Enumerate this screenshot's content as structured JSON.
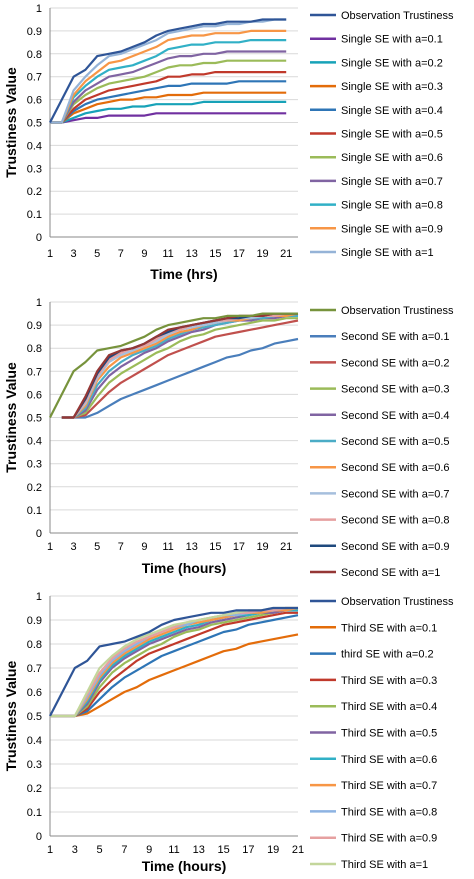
{
  "chart_data": [
    {
      "type": "line",
      "xlabel": "Time (hrs)",
      "ylabel": "Trustiness Value",
      "xlim": [
        1,
        22
      ],
      "ylim": [
        0,
        1
      ],
      "x_ticks": [
        1,
        3,
        5,
        7,
        9,
        11,
        13,
        15,
        17,
        19,
        21
      ],
      "y_ticks": [
        0,
        0.1,
        0.2,
        0.3,
        0.4,
        0.5,
        0.6,
        0.7,
        0.8,
        0.9,
        1
      ],
      "grid": "horizontal",
      "legend_position": "right",
      "x": [
        1,
        2,
        3,
        4,
        5,
        6,
        7,
        8,
        9,
        10,
        11,
        12,
        13,
        14,
        15,
        16,
        17,
        18,
        19,
        20,
        21
      ],
      "series": [
        {
          "name": "Observation Trustiness",
          "color": "#2f5597",
          "values": [
            0.5,
            0.6,
            0.7,
            0.73,
            0.79,
            0.8,
            0.81,
            0.83,
            0.85,
            0.88,
            0.9,
            0.91,
            0.92,
            0.93,
            0.93,
            0.94,
            0.94,
            0.94,
            0.95,
            0.95,
            0.95
          ]
        },
        {
          "name": "Single SE with a=0.1",
          "color": "#7030a0",
          "values": [
            0.5,
            0.5,
            0.51,
            0.52,
            0.52,
            0.53,
            0.53,
            0.53,
            0.53,
            0.54,
            0.54,
            0.54,
            0.54,
            0.54,
            0.54,
            0.54,
            0.54,
            0.54,
            0.54,
            0.54,
            0.54
          ]
        },
        {
          "name": "Single SE with a=0.2",
          "color": "#17a2b8",
          "values": [
            0.5,
            0.5,
            0.52,
            0.54,
            0.55,
            0.56,
            0.56,
            0.57,
            0.57,
            0.58,
            0.58,
            0.58,
            0.58,
            0.59,
            0.59,
            0.59,
            0.59,
            0.59,
            0.59,
            0.59,
            0.59
          ]
        },
        {
          "name": "Single SE with a=0.3",
          "color": "#e36c0a",
          "values": [
            0.5,
            0.5,
            0.54,
            0.56,
            0.58,
            0.59,
            0.6,
            0.6,
            0.61,
            0.61,
            0.62,
            0.62,
            0.62,
            0.63,
            0.63,
            0.63,
            0.63,
            0.63,
            0.63,
            0.63,
            0.63
          ]
        },
        {
          "name": "Single SE with a=0.4",
          "color": "#2e75b6",
          "values": [
            0.5,
            0.5,
            0.55,
            0.58,
            0.6,
            0.61,
            0.62,
            0.63,
            0.64,
            0.65,
            0.66,
            0.66,
            0.67,
            0.67,
            0.67,
            0.67,
            0.68,
            0.68,
            0.68,
            0.68,
            0.68
          ]
        },
        {
          "name": "Single SE with a=0.5",
          "color": "#c0392b",
          "values": [
            0.5,
            0.5,
            0.56,
            0.6,
            0.62,
            0.64,
            0.65,
            0.66,
            0.67,
            0.68,
            0.7,
            0.7,
            0.71,
            0.71,
            0.72,
            0.72,
            0.72,
            0.72,
            0.72,
            0.72,
            0.72
          ]
        },
        {
          "name": "Single SE with a=0.6",
          "color": "#9bbb59",
          "values": [
            0.5,
            0.5,
            0.58,
            0.62,
            0.65,
            0.67,
            0.68,
            0.69,
            0.7,
            0.72,
            0.74,
            0.75,
            0.75,
            0.76,
            0.76,
            0.77,
            0.77,
            0.77,
            0.77,
            0.77,
            0.77
          ]
        },
        {
          "name": "Single SE with a=0.7",
          "color": "#8064a2",
          "values": [
            0.5,
            0.5,
            0.59,
            0.64,
            0.67,
            0.7,
            0.71,
            0.72,
            0.74,
            0.76,
            0.78,
            0.79,
            0.79,
            0.8,
            0.8,
            0.81,
            0.81,
            0.81,
            0.81,
            0.81,
            0.81
          ]
        },
        {
          "name": "Single SE with a=0.8",
          "color": "#31b0c6",
          "values": [
            0.5,
            0.5,
            0.61,
            0.66,
            0.7,
            0.73,
            0.74,
            0.75,
            0.77,
            0.79,
            0.82,
            0.83,
            0.84,
            0.84,
            0.85,
            0.85,
            0.85,
            0.86,
            0.86,
            0.86,
            0.86
          ]
        },
        {
          "name": "Single SE with a=0.9",
          "color": "#f79646",
          "values": [
            0.5,
            0.5,
            0.62,
            0.68,
            0.72,
            0.76,
            0.77,
            0.79,
            0.81,
            0.83,
            0.86,
            0.87,
            0.88,
            0.88,
            0.89,
            0.89,
            0.89,
            0.9,
            0.9,
            0.9,
            0.9
          ]
        },
        {
          "name": "Single SE with a=1",
          "color": "#95b3d7",
          "values": [
            0.5,
            0.5,
            0.64,
            0.7,
            0.75,
            0.79,
            0.8,
            0.82,
            0.84,
            0.86,
            0.89,
            0.9,
            0.91,
            0.92,
            0.92,
            0.93,
            0.93,
            0.94,
            0.94,
            0.95,
            0.95
          ]
        }
      ]
    },
    {
      "type": "line",
      "xlabel": "Time (hours)",
      "ylabel": "Trustiness Value",
      "xlim": [
        1,
        22
      ],
      "ylim": [
        0,
        1
      ],
      "x_ticks": [
        1,
        3,
        5,
        7,
        9,
        11,
        13,
        15,
        17,
        19,
        21
      ],
      "y_ticks": [
        0,
        0.1,
        0.2,
        0.3,
        0.4,
        0.5,
        0.6,
        0.7,
        0.8,
        0.9,
        1
      ],
      "grid": "horizontal",
      "legend_position": "right",
      "x": [
        1,
        2,
        3,
        4,
        5,
        6,
        7,
        8,
        9,
        10,
        11,
        12,
        13,
        14,
        15,
        16,
        17,
        18,
        19,
        20,
        21,
        22
      ],
      "series": [
        {
          "name": "Observation Trustiness",
          "color": "#77933c",
          "values": [
            0.5,
            0.6,
            0.7,
            0.74,
            0.79,
            0.8,
            0.81,
            0.83,
            0.85,
            0.88,
            0.9,
            0.91,
            0.92,
            0.93,
            0.93,
            0.94,
            0.94,
            0.94,
            0.95,
            0.95,
            0.95,
            0.95
          ]
        },
        {
          "name": "Second SE with a=0.1",
          "color": "#4a7ebb",
          "values": [
            null,
            0.5,
            0.5,
            0.5,
            0.52,
            0.55,
            0.58,
            0.6,
            0.62,
            0.64,
            0.66,
            0.68,
            0.7,
            0.72,
            0.74,
            0.76,
            0.77,
            0.79,
            0.8,
            0.82,
            0.83,
            0.84
          ]
        },
        {
          "name": "Second SE with a=0.2",
          "color": "#c0504d",
          "values": [
            null,
            0.5,
            0.5,
            0.51,
            0.56,
            0.61,
            0.65,
            0.68,
            0.71,
            0.74,
            0.77,
            0.79,
            0.81,
            0.83,
            0.85,
            0.86,
            0.87,
            0.88,
            0.89,
            0.9,
            0.91,
            0.92
          ]
        },
        {
          "name": "Second SE with a=0.3",
          "color": "#9bbb59",
          "values": [
            null,
            0.5,
            0.5,
            0.52,
            0.59,
            0.65,
            0.69,
            0.72,
            0.75,
            0.78,
            0.8,
            0.83,
            0.85,
            0.86,
            0.88,
            0.89,
            0.9,
            0.91,
            0.92,
            0.92,
            0.93,
            0.93
          ]
        },
        {
          "name": "Second SE with a=0.4",
          "color": "#8064a2",
          "values": [
            null,
            0.5,
            0.5,
            0.53,
            0.62,
            0.68,
            0.72,
            0.75,
            0.78,
            0.8,
            0.83,
            0.85,
            0.87,
            0.88,
            0.9,
            0.91,
            0.92,
            0.92,
            0.93,
            0.93,
            0.94,
            0.94
          ]
        },
        {
          "name": "Second SE with a=0.5",
          "color": "#4bacc6",
          "values": [
            null,
            0.5,
            0.5,
            0.54,
            0.64,
            0.7,
            0.74,
            0.77,
            0.79,
            0.81,
            0.84,
            0.86,
            0.88,
            0.89,
            0.9,
            0.91,
            0.92,
            0.93,
            0.93,
            0.94,
            0.94,
            0.94
          ]
        },
        {
          "name": "Second SE with a=0.6",
          "color": "#f79646",
          "values": [
            null,
            0.5,
            0.5,
            0.55,
            0.66,
            0.72,
            0.76,
            0.78,
            0.8,
            0.82,
            0.85,
            0.87,
            0.88,
            0.9,
            0.91,
            0.92,
            0.92,
            0.93,
            0.94,
            0.94,
            0.94,
            0.95
          ]
        },
        {
          "name": "Second SE with a=0.7",
          "color": "#a6bfdd",
          "values": [
            null,
            0.5,
            0.5,
            0.56,
            0.67,
            0.74,
            0.77,
            0.79,
            0.81,
            0.83,
            0.86,
            0.88,
            0.89,
            0.9,
            0.91,
            0.92,
            0.93,
            0.93,
            0.94,
            0.94,
            0.95,
            0.95
          ]
        },
        {
          "name": "Second SE with a=0.8",
          "color": "#e6a0a0",
          "values": [
            null,
            0.5,
            0.5,
            0.57,
            0.68,
            0.75,
            0.78,
            0.8,
            0.81,
            0.84,
            0.87,
            0.88,
            0.9,
            0.91,
            0.92,
            0.92,
            0.93,
            0.94,
            0.94,
            0.94,
            0.95,
            0.95
          ]
        },
        {
          "name": "Second SE with a=0.9",
          "color": "#1f497d",
          "values": [
            null,
            0.5,
            0.5,
            0.58,
            0.69,
            0.76,
            0.79,
            0.8,
            0.82,
            0.85,
            0.87,
            0.89,
            0.9,
            0.91,
            0.92,
            0.93,
            0.93,
            0.94,
            0.94,
            0.95,
            0.95,
            0.95
          ]
        },
        {
          "name": "Second SE with a=1",
          "color": "#953735",
          "values": [
            null,
            0.5,
            0.5,
            0.59,
            0.7,
            0.77,
            0.79,
            0.8,
            0.82,
            0.85,
            0.88,
            0.89,
            0.9,
            0.91,
            0.92,
            0.93,
            0.94,
            0.94,
            0.94,
            0.95,
            0.95,
            0.95
          ]
        }
      ]
    },
    {
      "type": "line",
      "xlabel": "Time (hours)",
      "ylabel": "Trustiness Value",
      "xlim": [
        1,
        21
      ],
      "ylim": [
        0,
        1
      ],
      "x_ticks": [
        1,
        3,
        5,
        7,
        9,
        11,
        13,
        15,
        17,
        19,
        21
      ],
      "y_ticks": [
        0,
        0.1,
        0.2,
        0.3,
        0.4,
        0.5,
        0.6,
        0.7,
        0.8,
        0.9,
        1
      ],
      "grid": "horizontal",
      "legend_position": "right",
      "x": [
        1,
        2,
        3,
        4,
        5,
        6,
        7,
        8,
        9,
        10,
        11,
        12,
        13,
        14,
        15,
        16,
        17,
        18,
        19,
        20,
        21
      ],
      "series": [
        {
          "name": "Observation Trustiness",
          "color": "#2f5597",
          "values": [
            0.5,
            0.6,
            0.7,
            0.73,
            0.79,
            0.8,
            0.81,
            0.83,
            0.85,
            0.88,
            0.9,
            0.91,
            0.92,
            0.93,
            0.93,
            0.94,
            0.94,
            0.94,
            0.95,
            0.95,
            0.95
          ]
        },
        {
          "name": "Third SE with a=0.1",
          "color": "#e36c0a",
          "values": [
            0.5,
            0.5,
            0.5,
            0.51,
            0.54,
            0.57,
            0.6,
            0.62,
            0.65,
            0.67,
            0.69,
            0.71,
            0.73,
            0.75,
            0.77,
            0.78,
            0.8,
            0.81,
            0.82,
            0.83,
            0.84
          ]
        },
        {
          "name": "third SE with a=0.2",
          "color": "#2e75b6",
          "values": [
            0.5,
            0.5,
            0.5,
            0.52,
            0.57,
            0.62,
            0.66,
            0.69,
            0.72,
            0.75,
            0.77,
            0.79,
            0.81,
            0.83,
            0.85,
            0.86,
            0.88,
            0.89,
            0.9,
            0.91,
            0.92
          ]
        },
        {
          "name": "Third SE with a=0.3",
          "color": "#c0392b",
          "values": [
            0.5,
            0.5,
            0.5,
            0.53,
            0.6,
            0.65,
            0.69,
            0.73,
            0.76,
            0.78,
            0.8,
            0.82,
            0.84,
            0.86,
            0.88,
            0.89,
            0.9,
            0.91,
            0.92,
            0.93,
            0.93
          ]
        },
        {
          "name": "Third SE with a=0.4",
          "color": "#9bbb59",
          "values": [
            0.5,
            0.5,
            0.5,
            0.54,
            0.62,
            0.68,
            0.72,
            0.75,
            0.78,
            0.8,
            0.83,
            0.85,
            0.86,
            0.88,
            0.89,
            0.9,
            0.91,
            0.92,
            0.93,
            0.94,
            0.94
          ]
        },
        {
          "name": "Third SE with a=0.5",
          "color": "#8064a2",
          "values": [
            0.5,
            0.5,
            0.5,
            0.55,
            0.64,
            0.7,
            0.74,
            0.77,
            0.8,
            0.82,
            0.84,
            0.86,
            0.87,
            0.89,
            0.9,
            0.91,
            0.92,
            0.93,
            0.93,
            0.94,
            0.94
          ]
        },
        {
          "name": "Third SE with a=0.6",
          "color": "#31b0c6",
          "values": [
            0.5,
            0.5,
            0.5,
            0.56,
            0.65,
            0.71,
            0.75,
            0.78,
            0.81,
            0.83,
            0.85,
            0.87,
            0.88,
            0.9,
            0.91,
            0.92,
            0.92,
            0.93,
            0.94,
            0.94,
            0.94
          ]
        },
        {
          "name": "Third SE with a=0.7",
          "color": "#f79646",
          "values": [
            0.5,
            0.5,
            0.5,
            0.57,
            0.66,
            0.72,
            0.76,
            0.79,
            0.82,
            0.84,
            0.86,
            0.88,
            0.89,
            0.9,
            0.91,
            0.92,
            0.93,
            0.93,
            0.94,
            0.94,
            0.95
          ]
        },
        {
          "name": "Third SE with a=0.8",
          "color": "#8db3e2",
          "values": [
            0.5,
            0.5,
            0.5,
            0.58,
            0.67,
            0.73,
            0.77,
            0.8,
            0.83,
            0.85,
            0.87,
            0.88,
            0.9,
            0.91,
            0.92,
            0.92,
            0.93,
            0.94,
            0.94,
            0.95,
            0.95
          ]
        },
        {
          "name": "Third SE with a=0.9",
          "color": "#e6a0a0",
          "values": [
            0.5,
            0.5,
            0.5,
            0.59,
            0.68,
            0.74,
            0.78,
            0.81,
            0.83,
            0.85,
            0.87,
            0.89,
            0.9,
            0.91,
            0.92,
            0.93,
            0.93,
            0.94,
            0.94,
            0.95,
            0.95
          ]
        },
        {
          "name": "Third SE with a=1",
          "color": "#c3d69b",
          "values": [
            0.5,
            0.5,
            0.5,
            0.6,
            0.7,
            0.75,
            0.79,
            0.82,
            0.84,
            0.86,
            0.88,
            0.89,
            0.9,
            0.91,
            0.92,
            0.93,
            0.94,
            0.94,
            0.95,
            0.95,
            0.95
          ]
        }
      ]
    }
  ]
}
